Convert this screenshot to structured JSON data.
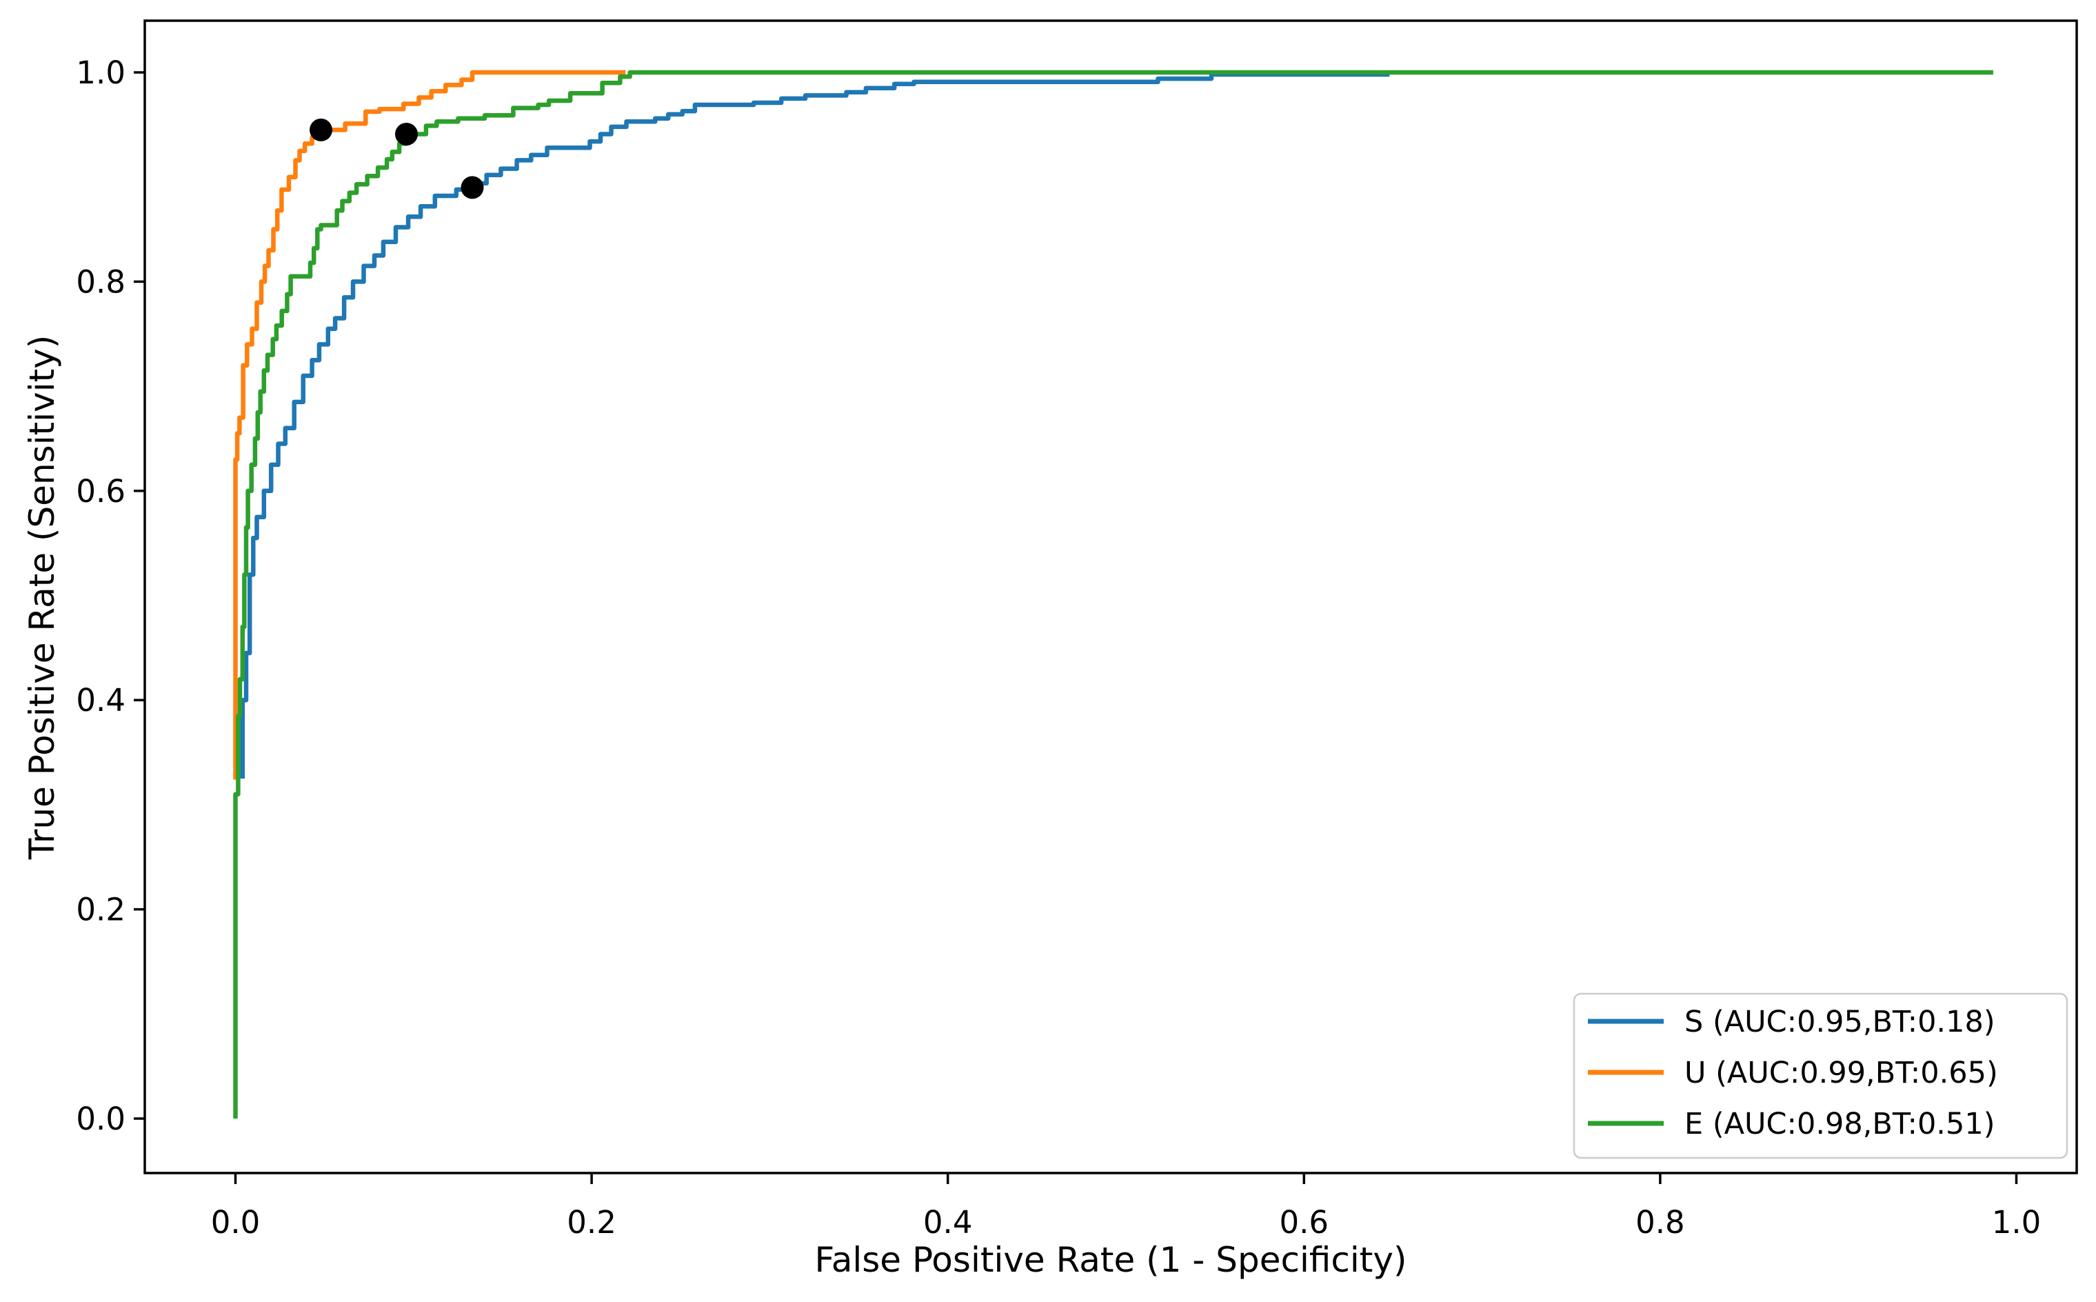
{
  "figure": {
    "background": "#ffffff",
    "x_tick_labels": [
      "0.0",
      "0.2",
      "0.4",
      "0.6",
      "0.8",
      "1.0"
    ],
    "y_tick_labels": [
      "0.0",
      "0.2",
      "0.4",
      "0.6",
      "0.8",
      "1.0"
    ]
  },
  "chart_data": {
    "type": "line",
    "subtype": "roc-curve-step",
    "title": "",
    "xlabel": "False Positive Rate (1 - Specificity)",
    "ylabel": "True Positive Rate (Sensitivity)",
    "xlim": [
      -0.051,
      1.034
    ],
    "ylim": [
      -0.052,
      1.049
    ],
    "x_ticks": [
      0.0,
      0.2,
      0.4,
      0.6,
      0.8,
      1.0
    ],
    "y_ticks": [
      0.0,
      0.2,
      0.4,
      0.6,
      0.8,
      1.0
    ],
    "grid": false,
    "legend_position": "lower right",
    "marker_color": "#000000",
    "axis_color": "#000000",
    "series": [
      {
        "name": "S",
        "legend_label": "S (AUC:0.95,BT:0.18)",
        "auc": 0.95,
        "best_threshold": 0.18,
        "color": "#1f77b4",
        "best_threshold_point": {
          "fpr": 0.133,
          "tpr": 0.89
        },
        "points": [
          [
            0.004,
            0.325
          ],
          [
            0.004,
            0.4
          ],
          [
            0.006,
            0.4
          ],
          [
            0.006,
            0.445
          ],
          [
            0.008,
            0.445
          ],
          [
            0.008,
            0.52
          ],
          [
            0.01,
            0.52
          ],
          [
            0.01,
            0.555
          ],
          [
            0.012,
            0.555
          ],
          [
            0.012,
            0.575
          ],
          [
            0.016,
            0.575
          ],
          [
            0.016,
            0.6
          ],
          [
            0.02,
            0.6
          ],
          [
            0.02,
            0.625
          ],
          [
            0.024,
            0.625
          ],
          [
            0.024,
            0.645
          ],
          [
            0.028,
            0.645
          ],
          [
            0.028,
            0.66
          ],
          [
            0.033,
            0.66
          ],
          [
            0.033,
            0.685
          ],
          [
            0.038,
            0.685
          ],
          [
            0.038,
            0.71
          ],
          [
            0.043,
            0.71
          ],
          [
            0.043,
            0.725
          ],
          [
            0.047,
            0.725
          ],
          [
            0.047,
            0.74
          ],
          [
            0.052,
            0.74
          ],
          [
            0.052,
            0.755
          ],
          [
            0.056,
            0.755
          ],
          [
            0.056,
            0.765
          ],
          [
            0.061,
            0.765
          ],
          [
            0.061,
            0.785
          ],
          [
            0.066,
            0.785
          ],
          [
            0.066,
            0.8
          ],
          [
            0.072,
            0.8
          ],
          [
            0.072,
            0.815
          ],
          [
            0.078,
            0.815
          ],
          [
            0.078,
            0.825
          ],
          [
            0.083,
            0.825
          ],
          [
            0.083,
            0.838
          ],
          [
            0.09,
            0.838
          ],
          [
            0.09,
            0.852
          ],
          [
            0.097,
            0.852
          ],
          [
            0.097,
            0.862
          ],
          [
            0.104,
            0.862
          ],
          [
            0.104,
            0.872
          ],
          [
            0.112,
            0.872
          ],
          [
            0.112,
            0.882
          ],
          [
            0.124,
            0.882
          ],
          [
            0.124,
            0.888
          ],
          [
            0.133,
            0.888
          ],
          [
            0.133,
            0.894
          ],
          [
            0.141,
            0.894
          ],
          [
            0.141,
            0.902
          ],
          [
            0.149,
            0.902
          ],
          [
            0.149,
            0.908
          ],
          [
            0.158,
            0.908
          ],
          [
            0.158,
            0.916
          ],
          [
            0.166,
            0.916
          ],
          [
            0.166,
            0.921
          ],
          [
            0.175,
            0.921
          ],
          [
            0.175,
            0.928
          ],
          [
            0.199,
            0.928
          ],
          [
            0.199,
            0.934
          ],
          [
            0.205,
            0.934
          ],
          [
            0.205,
            0.941
          ],
          [
            0.211,
            0.941
          ],
          [
            0.211,
            0.948
          ],
          [
            0.2195,
            0.948
          ],
          [
            0.2195,
            0.953
          ],
          [
            0.2357,
            0.953
          ],
          [
            0.2357,
            0.956
          ],
          [
            0.243,
            0.956
          ],
          [
            0.243,
            0.96
          ],
          [
            0.251,
            0.96
          ],
          [
            0.251,
            0.963
          ],
          [
            0.258,
            0.963
          ],
          [
            0.258,
            0.969
          ],
          [
            0.291,
            0.969
          ],
          [
            0.291,
            0.971
          ],
          [
            0.3065,
            0.971
          ],
          [
            0.3065,
            0.975
          ],
          [
            0.32,
            0.975
          ],
          [
            0.32,
            0.978
          ],
          [
            0.343,
            0.978
          ],
          [
            0.343,
            0.981
          ],
          [
            0.354,
            0.981
          ],
          [
            0.354,
            0.985
          ],
          [
            0.37,
            0.985
          ],
          [
            0.37,
            0.989
          ],
          [
            0.381,
            0.989
          ],
          [
            0.381,
            0.991
          ],
          [
            0.518,
            0.991
          ],
          [
            0.518,
            0.994
          ],
          [
            0.548,
            0.994
          ],
          [
            0.548,
            0.998
          ],
          [
            0.648,
            0.998
          ]
        ]
      },
      {
        "name": "U",
        "legend_label": "U (AUC:0.99,BT:0.65)",
        "auc": 0.99,
        "best_threshold": 0.65,
        "color": "#ff7f0e",
        "best_threshold_point": {
          "fpr": 0.048,
          "tpr": 0.945
        },
        "points": [
          [
            0.0,
            0.324
          ],
          [
            0.0,
            0.63
          ],
          [
            0.001,
            0.63
          ],
          [
            0.001,
            0.655
          ],
          [
            0.0023,
            0.655
          ],
          [
            0.0023,
            0.67
          ],
          [
            0.0043,
            0.67
          ],
          [
            0.0043,
            0.72
          ],
          [
            0.0065,
            0.72
          ],
          [
            0.0065,
            0.74
          ],
          [
            0.0093,
            0.74
          ],
          [
            0.0093,
            0.755
          ],
          [
            0.012,
            0.755
          ],
          [
            0.012,
            0.78
          ],
          [
            0.0145,
            0.78
          ],
          [
            0.0145,
            0.8
          ],
          [
            0.0165,
            0.8
          ],
          [
            0.0165,
            0.815
          ],
          [
            0.0186,
            0.815
          ],
          [
            0.0186,
            0.83
          ],
          [
            0.0213,
            0.83
          ],
          [
            0.0213,
            0.85
          ],
          [
            0.0235,
            0.85
          ],
          [
            0.0235,
            0.868
          ],
          [
            0.0259,
            0.868
          ],
          [
            0.0259,
            0.888
          ],
          [
            0.03,
            0.888
          ],
          [
            0.03,
            0.9
          ],
          [
            0.0337,
            0.9
          ],
          [
            0.0337,
            0.916
          ],
          [
            0.036,
            0.916
          ],
          [
            0.036,
            0.925
          ],
          [
            0.039,
            0.925
          ],
          [
            0.039,
            0.932
          ],
          [
            0.043,
            0.932
          ],
          [
            0.043,
            0.938
          ],
          [
            0.047,
            0.938
          ],
          [
            0.047,
            0.945
          ],
          [
            0.0616,
            0.945
          ],
          [
            0.0616,
            0.951
          ],
          [
            0.0731,
            0.951
          ],
          [
            0.0731,
            0.9625
          ],
          [
            0.0809,
            0.9625
          ],
          [
            0.0809,
            0.965
          ],
          [
            0.0944,
            0.965
          ],
          [
            0.0944,
            0.97
          ],
          [
            0.103,
            0.97
          ],
          [
            0.103,
            0.976
          ],
          [
            0.11,
            0.976
          ],
          [
            0.11,
            0.982
          ],
          [
            0.118,
            0.982
          ],
          [
            0.118,
            0.988
          ],
          [
            0.127,
            0.988
          ],
          [
            0.127,
            0.993
          ],
          [
            0.133,
            0.993
          ],
          [
            0.133,
            1.0
          ],
          [
            0.219,
            1.0
          ]
        ]
      },
      {
        "name": "E",
        "legend_label": "E (AUC:0.98,BT:0.51)",
        "auc": 0.98,
        "best_threshold": 0.51,
        "color": "#2ca02c",
        "best_threshold_point": {
          "fpr": 0.096,
          "tpr": 0.941
        },
        "points": [
          [
            0.0,
            0.0
          ],
          [
            0.0,
            0.31
          ],
          [
            0.0015,
            0.31
          ],
          [
            0.0015,
            0.385
          ],
          [
            0.0025,
            0.385
          ],
          [
            0.0025,
            0.42
          ],
          [
            0.004,
            0.42
          ],
          [
            0.004,
            0.47
          ],
          [
            0.005,
            0.47
          ],
          [
            0.005,
            0.52
          ],
          [
            0.006,
            0.52
          ],
          [
            0.006,
            0.565
          ],
          [
            0.007,
            0.565
          ],
          [
            0.007,
            0.6
          ],
          [
            0.009,
            0.6
          ],
          [
            0.009,
            0.625
          ],
          [
            0.011,
            0.625
          ],
          [
            0.011,
            0.65
          ],
          [
            0.0125,
            0.65
          ],
          [
            0.0125,
            0.675
          ],
          [
            0.014,
            0.675
          ],
          [
            0.014,
            0.695
          ],
          [
            0.016,
            0.695
          ],
          [
            0.016,
            0.715
          ],
          [
            0.018,
            0.715
          ],
          [
            0.018,
            0.73
          ],
          [
            0.021,
            0.73
          ],
          [
            0.021,
            0.745
          ],
          [
            0.023,
            0.745
          ],
          [
            0.023,
            0.758
          ],
          [
            0.026,
            0.758
          ],
          [
            0.026,
            0.772
          ],
          [
            0.029,
            0.772
          ],
          [
            0.029,
            0.788
          ],
          [
            0.031,
            0.788
          ],
          [
            0.031,
            0.805
          ],
          [
            0.042,
            0.805
          ],
          [
            0.042,
            0.818
          ],
          [
            0.044,
            0.818
          ],
          [
            0.044,
            0.832
          ],
          [
            0.046,
            0.832
          ],
          [
            0.046,
            0.85
          ],
          [
            0.048,
            0.85
          ],
          [
            0.048,
            0.854
          ],
          [
            0.057,
            0.854
          ],
          [
            0.057,
            0.868
          ],
          [
            0.06,
            0.868
          ],
          [
            0.06,
            0.877
          ],
          [
            0.064,
            0.877
          ],
          [
            0.064,
            0.885
          ],
          [
            0.068,
            0.885
          ],
          [
            0.068,
            0.893
          ],
          [
            0.074,
            0.893
          ],
          [
            0.074,
            0.901
          ],
          [
            0.08,
            0.901
          ],
          [
            0.08,
            0.909
          ],
          [
            0.085,
            0.909
          ],
          [
            0.085,
            0.917
          ],
          [
            0.088,
            0.917
          ],
          [
            0.088,
            0.924
          ],
          [
            0.092,
            0.924
          ],
          [
            0.092,
            0.932
          ],
          [
            0.096,
            0.932
          ],
          [
            0.096,
            0.941
          ],
          [
            0.107,
            0.941
          ],
          [
            0.107,
            0.949
          ],
          [
            0.113,
            0.949
          ],
          [
            0.113,
            0.953
          ],
          [
            0.125,
            0.953
          ],
          [
            0.125,
            0.956
          ],
          [
            0.14,
            0.956
          ],
          [
            0.14,
            0.959
          ],
          [
            0.156,
            0.959
          ],
          [
            0.156,
            0.966
          ],
          [
            0.17,
            0.966
          ],
          [
            0.17,
            0.969
          ],
          [
            0.176,
            0.969
          ],
          [
            0.176,
            0.973
          ],
          [
            0.188,
            0.973
          ],
          [
            0.188,
            0.98
          ],
          [
            0.206,
            0.98
          ],
          [
            0.206,
            0.99
          ],
          [
            0.216,
            0.99
          ],
          [
            0.216,
            0.996
          ],
          [
            0.2215,
            0.996
          ],
          [
            0.2215,
            1.0
          ],
          [
            0.987,
            1.0
          ]
        ]
      }
    ]
  }
}
